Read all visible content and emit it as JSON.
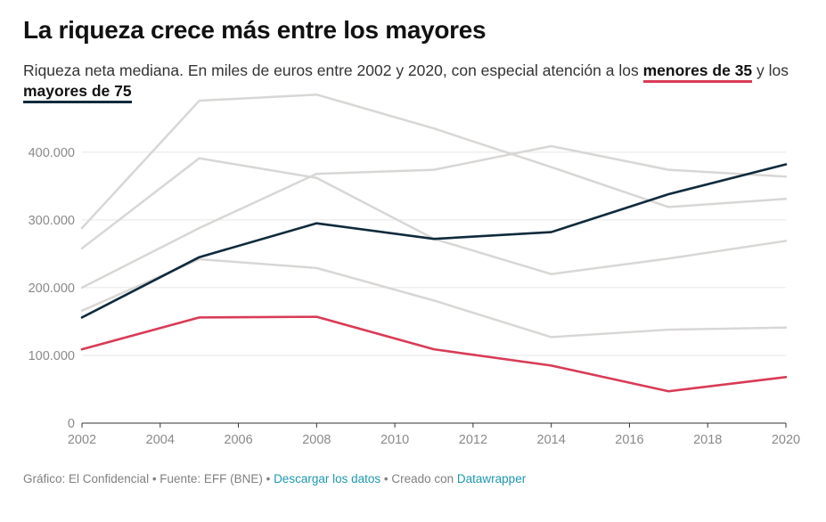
{
  "header": {
    "title": "La riqueza crece más entre los mayores",
    "subtitle_part1": "Riqueza neta mediana. En miles de euros entre 2002 y 2020, con especial atención a los ",
    "subtitle_highlight1": "menores de 35",
    "subtitle_part2": " y los ",
    "subtitle_highlight2": "mayores de 75"
  },
  "colors": {
    "young": "#d93b56",
    "old": "#0f2a3c",
    "other": "#d9d7d5",
    "grid": "#e6e6e6",
    "link": "#1d98b0"
  },
  "chart_data": {
    "type": "line",
    "x": [
      2002,
      2005,
      2008,
      2011,
      2014,
      2017,
      2020
    ],
    "xticks": [
      "2002",
      "2004",
      "2006",
      "2008",
      "2010",
      "2012",
      "2014",
      "2016",
      "2018",
      "2020"
    ],
    "xlim": [
      2002,
      2020
    ],
    "ylim": [
      0,
      480000
    ],
    "yticks": [
      0,
      100000,
      200000,
      300000,
      400000
    ],
    "ytick_labels": [
      "0",
      "100.000",
      "200.000",
      "300.000",
      "400.000"
    ],
    "series": [
      {
        "values": [
          288000,
          476000,
          485000,
          435000,
          378000,
          319000,
          331000
        ],
        "highlight": "other"
      },
      {
        "values": [
          258000,
          391000,
          362000,
          272000,
          220000,
          243000,
          269000
        ],
        "highlight": "other"
      },
      {
        "values": [
          200000,
          288000,
          368000,
          374000,
          409000,
          374000,
          364000
        ],
        "highlight": "other"
      },
      {
        "values": [
          166000,
          242000,
          229000,
          181000,
          127000,
          138000,
          141000
        ],
        "highlight": "other"
      },
      {
        "name": "mayores de 75",
        "values": [
          156000,
          245000,
          295000,
          272000,
          282000,
          338000,
          382000
        ],
        "highlight": "old"
      },
      {
        "name": "menores de 35",
        "values": [
          109000,
          156000,
          157000,
          109000,
          85000,
          47000,
          68000
        ],
        "highlight": "young"
      }
    ]
  },
  "footer": {
    "text1": "Gráfico: El Confidencial • Fuente: EFF (BNE) • ",
    "link1": "Descargar los datos",
    "text2": " • Creado con ",
    "link2": "Datawrapper"
  }
}
